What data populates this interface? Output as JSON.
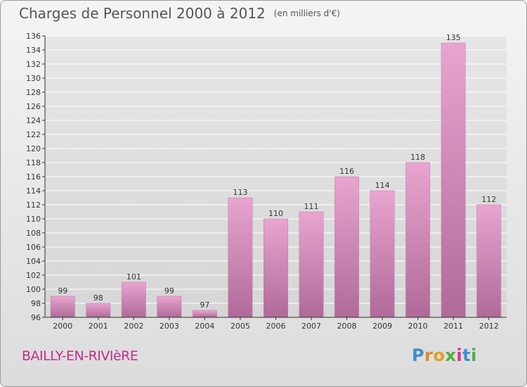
{
  "header": {
    "title": "Charges de Personnel 2000 à 2012",
    "subtitle": "(en milliers d'€)"
  },
  "footer": {
    "town": "BAILLY-EN-RIVIèRE",
    "logo_text": "Proxiti"
  },
  "colors": {
    "bar_top": "#e8a5cf",
    "bar_bottom": "#b06a98",
    "town_text": "#c0308a",
    "grid": "#ffffff"
  },
  "chart_data": {
    "type": "bar",
    "categories": [
      "2000",
      "2001",
      "2002",
      "2003",
      "2004",
      "2005",
      "2006",
      "2007",
      "2008",
      "2009",
      "2010",
      "2011",
      "2012"
    ],
    "values": [
      99,
      98,
      101,
      99,
      97,
      113,
      110,
      111,
      116,
      114,
      118,
      135,
      112
    ],
    "ylim": [
      96,
      136
    ],
    "ytick_step": 2,
    "grid": true
  }
}
